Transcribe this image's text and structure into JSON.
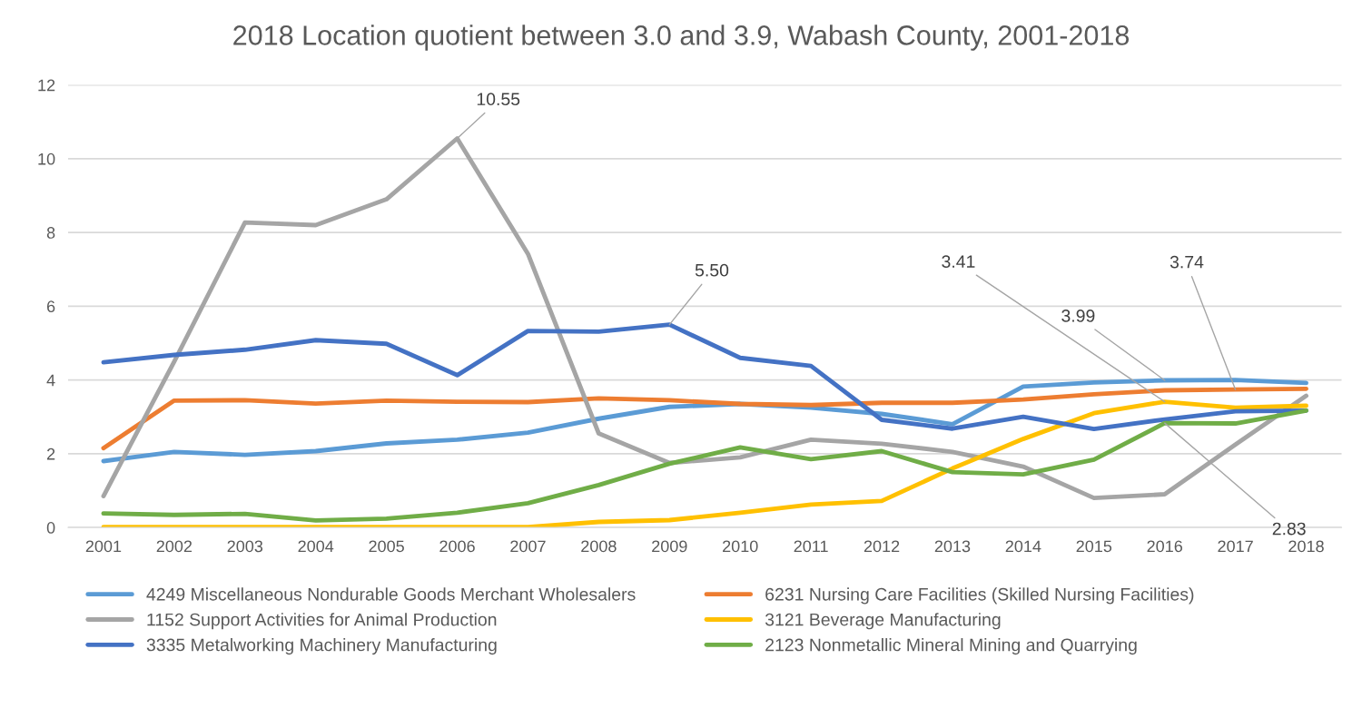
{
  "chart_data": {
    "type": "line",
    "title": "2018 Location quotient between 3.0 and 3.9, Wabash County, 2001-2018",
    "categories": [
      "2001",
      "2002",
      "2003",
      "2004",
      "2005",
      "2006",
      "2007",
      "2008",
      "2009",
      "2010",
      "2011",
      "2012",
      "2013",
      "2014",
      "2015",
      "2016",
      "2017",
      "2018"
    ],
    "series": [
      {
        "name": "4249 Miscellaneous Nondurable Goods Merchant Wholesalers",
        "color": "#5b9bd5",
        "values": [
          1.8,
          2.05,
          1.97,
          2.07,
          2.28,
          2.38,
          2.57,
          2.95,
          3.27,
          3.35,
          3.25,
          3.08,
          2.8,
          3.82,
          3.93,
          3.99,
          4.0,
          3.92
        ],
        "value_labels": [
          null,
          null,
          null,
          null,
          null,
          null,
          null,
          null,
          null,
          null,
          null,
          null,
          null,
          null,
          null,
          "3.99",
          null,
          null
        ]
      },
      {
        "name": "6231 Nursing Care Facilities (Skilled Nursing Facilities)",
        "color": "#ed7d31",
        "values": [
          2.15,
          3.44,
          3.45,
          3.36,
          3.44,
          3.41,
          3.4,
          3.5,
          3.45,
          3.35,
          3.32,
          3.38,
          3.38,
          3.47,
          3.61,
          3.72,
          3.74,
          3.76
        ],
        "value_labels": [
          null,
          null,
          null,
          null,
          null,
          null,
          null,
          null,
          null,
          null,
          null,
          null,
          null,
          null,
          null,
          null,
          "3.74",
          null
        ]
      },
      {
        "name": "1152 Support Activities for Animal Production",
        "color": "#a5a5a5",
        "values": [
          0.85,
          4.5,
          8.27,
          8.2,
          8.9,
          10.55,
          7.42,
          2.55,
          1.75,
          1.9,
          2.38,
          2.27,
          2.05,
          1.65,
          0.8,
          0.9,
          2.25,
          3.57
        ],
        "value_labels": [
          null,
          null,
          null,
          null,
          null,
          "10.55",
          null,
          null,
          null,
          null,
          null,
          null,
          null,
          null,
          null,
          null,
          null,
          null
        ]
      },
      {
        "name": "3121 Beverage Manufacturing",
        "color": "#ffc000",
        "values": [
          0.01,
          0.01,
          0.01,
          0.01,
          0.01,
          0.01,
          0.01,
          0.15,
          0.2,
          0.4,
          0.62,
          0.72,
          1.6,
          2.4,
          3.1,
          3.41,
          3.25,
          3.3
        ],
        "value_labels": [
          null,
          null,
          null,
          null,
          null,
          null,
          null,
          null,
          null,
          null,
          null,
          null,
          null,
          null,
          null,
          "3.41",
          null,
          null
        ]
      },
      {
        "name": "3335 Metalworking Machinery Manufacturing",
        "color": "#4472c4",
        "values": [
          4.48,
          4.68,
          4.82,
          5.08,
          4.98,
          4.13,
          5.33,
          5.31,
          5.5,
          4.6,
          4.38,
          2.92,
          2.68,
          3.0,
          2.67,
          2.93,
          3.15,
          3.17
        ],
        "value_labels": [
          null,
          null,
          null,
          null,
          null,
          null,
          null,
          null,
          "5.50",
          null,
          null,
          null,
          null,
          null,
          null,
          null,
          null,
          null
        ]
      },
      {
        "name": "2123 Nonmetallic Mineral Mining and Quarrying",
        "color": "#70ad47",
        "values": [
          0.38,
          0.34,
          0.37,
          0.19,
          0.24,
          0.4,
          0.66,
          1.15,
          1.73,
          2.17,
          1.85,
          2.07,
          1.5,
          1.44,
          1.84,
          2.83,
          2.82,
          3.17
        ],
        "value_labels": [
          null,
          null,
          null,
          null,
          null,
          null,
          null,
          null,
          null,
          null,
          null,
          null,
          null,
          null,
          null,
          "2.83",
          null,
          null
        ]
      }
    ],
    "ylim": [
      0,
      12
    ],
    "yticks": [
      0,
      2,
      4,
      6,
      8,
      10,
      12
    ],
    "grid": "y",
    "legend": "bottom",
    "marker": "none",
    "line_style": "solid"
  }
}
